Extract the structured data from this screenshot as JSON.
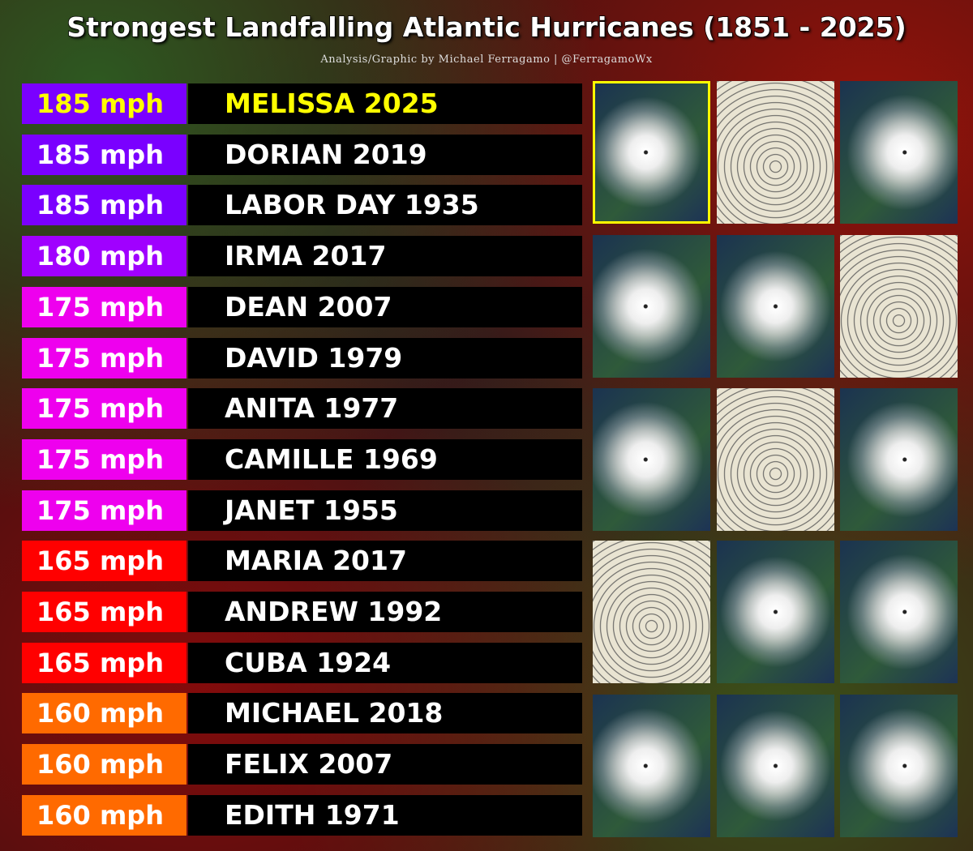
{
  "header": {
    "title": "Strongest Landfalling Atlantic Hurricanes (1851 - 2025)",
    "subtitle": "Analysis/Graphic by Michael Ferragamo | @FerragamoWx"
  },
  "table": {
    "rows": [
      {
        "speed": "185 mph",
        "name": "MELISSA 2025",
        "speed_color": "#7a00ff",
        "speed_text_color": "#ffff00",
        "name_color": "#ffff00"
      },
      {
        "speed": "185 mph",
        "name": "DORIAN 2019",
        "speed_color": "#7a00ff",
        "speed_text_color": "#ffffff",
        "name_color": "#ffffff"
      },
      {
        "speed": "185 mph",
        "name": "LABOR DAY 1935",
        "speed_color": "#7a00ff",
        "speed_text_color": "#ffffff",
        "name_color": "#ffffff"
      },
      {
        "speed": "180 mph",
        "name": "IRMA 2017",
        "speed_color": "#a000ff",
        "speed_text_color": "#ffffff",
        "name_color": "#ffffff"
      },
      {
        "speed": "175 mph",
        "name": "DEAN 2007",
        "speed_color": "#ee00ee",
        "speed_text_color": "#ffffff",
        "name_color": "#ffffff"
      },
      {
        "speed": "175 mph",
        "name": "DAVID 1979",
        "speed_color": "#ee00ee",
        "speed_text_color": "#ffffff",
        "name_color": "#ffffff"
      },
      {
        "speed": "175 mph",
        "name": "ANITA 1977",
        "speed_color": "#ee00ee",
        "speed_text_color": "#ffffff",
        "name_color": "#ffffff"
      },
      {
        "speed": "175 mph",
        "name": "CAMILLE 1969",
        "speed_color": "#ee00ee",
        "speed_text_color": "#ffffff",
        "name_color": "#ffffff"
      },
      {
        "speed": "175 mph",
        "name": "JANET 1955",
        "speed_color": "#ee00ee",
        "speed_text_color": "#ffffff",
        "name_color": "#ffffff"
      },
      {
        "speed": "165 mph",
        "name": "MARIA 2017",
        "speed_color": "#ff0000",
        "speed_text_color": "#ffffff",
        "name_color": "#ffffff"
      },
      {
        "speed": "165 mph",
        "name": "ANDREW 1992",
        "speed_color": "#ff0000",
        "speed_text_color": "#ffffff",
        "name_color": "#ffffff"
      },
      {
        "speed": "165 mph",
        "name": "CUBA 1924",
        "speed_color": "#ff0000",
        "speed_text_color": "#ffffff",
        "name_color": "#ffffff"
      },
      {
        "speed": "160 mph",
        "name": "MICHAEL 2018",
        "speed_color": "#ff6a00",
        "speed_text_color": "#ffffff",
        "name_color": "#ffffff"
      },
      {
        "speed": "160 mph",
        "name": "FELIX 2007",
        "speed_color": "#ff6a00",
        "speed_text_color": "#ffffff",
        "name_color": "#ffffff"
      },
      {
        "speed": "160 mph",
        "name": "EDITH 1971",
        "speed_color": "#ff6a00",
        "speed_text_color": "#ffffff",
        "name_color": "#ffffff"
      }
    ]
  }
}
